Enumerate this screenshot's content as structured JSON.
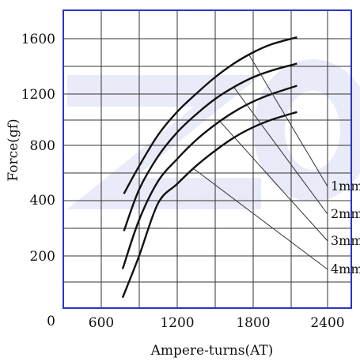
{
  "chart_data": {
    "type": "line",
    "xlabel": "Ampere-turns(AT)",
    "ylabel": "Force(gf)",
    "x_ticks": [
      "600",
      "1200",
      "1800",
      "2400"
    ],
    "y_ticks": [
      "200",
      "400",
      "800",
      "1200",
      "1600"
    ],
    "origin_label": "0",
    "series": [
      {
        "name": "1mm",
        "x": [
          780,
          900,
          1050,
          1200,
          1350,
          1500,
          1650,
          1800,
          1950,
          2150
        ],
        "y": [
          450,
          650,
          880,
          1060,
          1200,
          1320,
          1420,
          1500,
          1560,
          1610
        ]
      },
      {
        "name": "2mm",
        "x": [
          780,
          900,
          1050,
          1200,
          1350,
          1500,
          1650,
          1800,
          1950,
          2150
        ],
        "y": [
          290,
          480,
          720,
          900,
          1040,
          1160,
          1250,
          1320,
          1370,
          1420
        ]
      },
      {
        "name": "3mm",
        "x": [
          770,
          900,
          1050,
          1200,
          1350,
          1500,
          1650,
          1800,
          1950,
          2150
        ],
        "y": [
          150,
          330,
          540,
          700,
          840,
          960,
          1060,
          1140,
          1200,
          1260
        ]
      },
      {
        "name": "4mm",
        "x": [
          770,
          900,
          1050,
          1200,
          1350,
          1500,
          1650,
          1800,
          1950,
          2150
        ],
        "y": [
          40,
          200,
          390,
          520,
          650,
          760,
          860,
          940,
          1000,
          1060
        ]
      }
    ],
    "legend": [
      "1mm",
      "2mm",
      "3mm",
      "4mm"
    ]
  }
}
